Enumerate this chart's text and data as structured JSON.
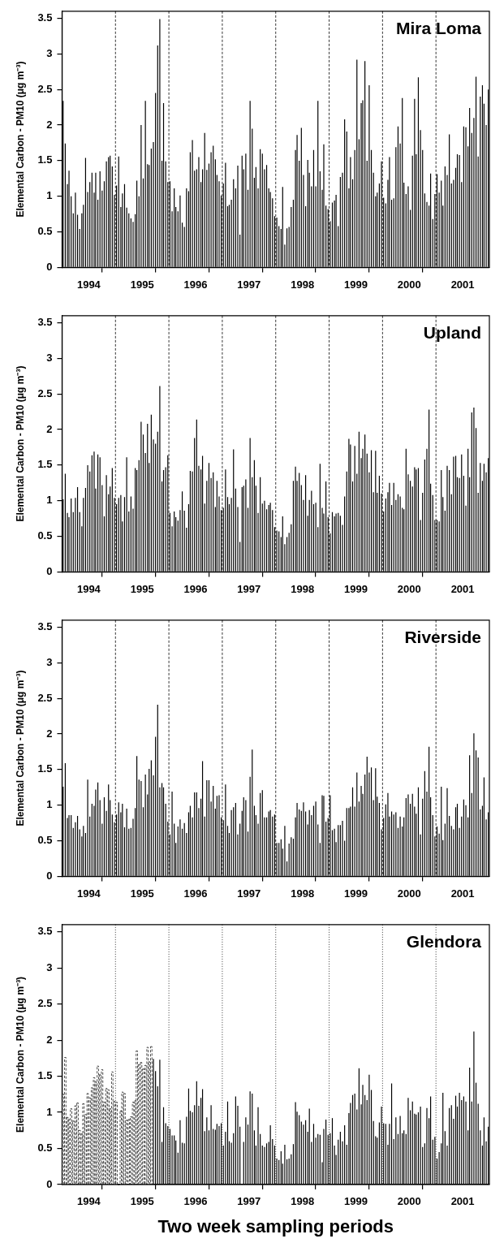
{
  "chart_data": [
    {
      "type": "bar",
      "title": "Mira Loma",
      "ylabel": "Elemental Carbon - PM10 (μg m⁻³)",
      "xlim": [
        1994,
        2002
      ],
      "ylim": [
        0,
        3.6
      ],
      "grid": false,
      "xticks": [
        {
          "value": 1994.5,
          "label": "1994"
        },
        {
          "value": 1995,
          "label": null
        },
        {
          "value": 1995.5,
          "label": "1995"
        },
        {
          "value": 1996,
          "label": null
        },
        {
          "value": 1996.5,
          "label": "1996"
        },
        {
          "value": 1997,
          "label": null
        },
        {
          "value": 1997.5,
          "label": "1997"
        },
        {
          "value": 1998,
          "label": null
        },
        {
          "value": 1998.5,
          "label": "1998"
        },
        {
          "value": 1999,
          "label": null
        },
        {
          "value": 1999.5,
          "label": "1999"
        },
        {
          "value": 2000,
          "label": null
        },
        {
          "value": 2000.5,
          "label": "2000"
        },
        {
          "value": 2001,
          "label": null
        },
        {
          "value": 2001.5,
          "label": "2001"
        }
      ],
      "yticks": [
        0,
        0.5,
        1,
        1.5,
        2,
        2.5,
        3,
        3.5
      ],
      "ref_lines": [
        {
          "axis": "x",
          "value": 1995,
          "line_style": "dashed"
        },
        {
          "axis": "x",
          "value": 1996,
          "line_style": "dashed"
        },
        {
          "axis": "x",
          "value": 1997,
          "line_style": "dashed"
        },
        {
          "axis": "x",
          "value": 1998,
          "line_style": "dashed"
        },
        {
          "axis": "x",
          "value": 1999,
          "line_style": "dashed"
        },
        {
          "axis": "x",
          "value": 2000,
          "line_style": "dashed"
        },
        {
          "axis": "x",
          "value": 2001,
          "line_style": "dashed"
        }
      ],
      "x": [
        1994.02,
        1994.06,
        1994.1,
        1994.13,
        1994.17,
        1994.21,
        1994.25,
        1994.29,
        1994.33,
        1994.37,
        1994.4,
        1994.44,
        1994.48,
        1994.52,
        1994.56,
        1994.6,
        1994.63,
        1994.67,
        1994.71,
        1994.75,
        1994.79,
        1994.83,
        1994.87,
        1994.9,
        1994.94,
        1994.98,
        1995.02,
        1995.06,
        1995.1,
        1995.13,
        1995.17,
        1995.21,
        1995.25,
        1995.29,
        1995.33,
        1995.37,
        1995.4,
        1995.44,
        1995.48,
        1995.52,
        1995.56,
        1995.6,
        1995.63,
        1995.67,
        1995.71,
        1995.75,
        1995.79,
        1995.83,
        1995.87,
        1995.9,
        1995.94,
        1995.98,
        1996.02,
        1996.06,
        1996.1,
        1996.13,
        1996.17,
        1996.21,
        1996.25,
        1996.29,
        1996.33,
        1996.37,
        1996.4,
        1996.44,
        1996.48,
        1996.52,
        1996.56,
        1996.6,
        1996.63,
        1996.67,
        1996.71,
        1996.75,
        1996.79,
        1996.83,
        1996.87,
        1996.9,
        1996.94,
        1996.98,
        1997.02,
        1997.06,
        1997.1,
        1997.13,
        1997.17,
        1997.21,
        1997.25,
        1997.29,
        1997.33,
        1997.37,
        1997.4,
        1997.44,
        1997.48,
        1997.52,
        1997.56,
        1997.6,
        1997.63,
        1997.67,
        1997.71,
        1997.75,
        1997.79,
        1997.83,
        1997.87,
        1997.9,
        1997.94,
        1997.98,
        1998.02,
        1998.06,
        1998.1,
        1998.13,
        1998.17,
        1998.21,
        1998.25,
        1998.29,
        1998.33,
        1998.37,
        1998.4,
        1998.44,
        1998.48,
        1998.52,
        1998.56,
        1998.6,
        1998.63,
        1998.67,
        1998.71,
        1998.75,
        1998.79,
        1998.83,
        1998.87,
        1998.9,
        1998.94,
        1998.98,
        1999.02,
        1999.06,
        1999.1,
        1999.13,
        1999.17,
        1999.21,
        1999.25,
        1999.29,
        1999.33,
        1999.37,
        1999.4,
        1999.44,
        1999.48,
        1999.52,
        1999.56,
        1999.6,
        1999.63,
        1999.67,
        1999.71,
        1999.75,
        1999.79,
        1999.83,
        1999.87,
        1999.9,
        1999.94,
        1999.98,
        2000.02,
        2000.06,
        2000.1,
        2000.13,
        2000.17,
        2000.21,
        2000.25,
        2000.29,
        2000.33,
        2000.37,
        2000.4,
        2000.44,
        2000.48,
        2000.52,
        2000.56,
        2000.6,
        2000.63,
        2000.67,
        2000.71,
        2000.75,
        2000.79,
        2000.83,
        2000.87,
        2000.9,
        2000.94,
        2000.98,
        2001.02,
        2001.06,
        2001.1,
        2001.13,
        2001.17,
        2001.21,
        2001.25,
        2001.29,
        2001.33,
        2001.37,
        2001.4,
        2001.44,
        2001.48,
        2001.52,
        2001.56,
        2001.6,
        2001.63,
        2001.67,
        2001.71,
        2001.75,
        2001.79,
        2001.83,
        2001.87,
        2001.9,
        2001.94,
        2001.98
      ],
      "series": [
        {
          "color": "#000000",
          "values": [
            2.34,
            1.74,
            1.17,
            1.36,
            1.0,
            0.76,
            1.05,
            0.74,
            0.54,
            0.76,
            0.88,
            1.54,
            1.06,
            1.2,
            1.33,
            1.05,
            1.33,
            0.95,
            1.35,
            1.08,
            1.21,
            1.49,
            1.55,
            1.57,
            1.42,
            1.02,
            1.15,
            1.56,
            0.85,
            1.04,
            1.17,
            0.84,
            0.76,
            0.69,
            0.64,
            0.75,
            1.22,
            1.0,
            2.0,
            1.25,
            2.34,
            1.45,
            1.44,
            1.67,
            1.76,
            2.45,
            3.12,
            3.49,
            1.5,
            2.31,
            1.49,
            1.2,
            1.21,
            0.79,
            1.11,
            0.85,
            0.79,
            1.01,
            0.63,
            0.57,
            1.11,
            1.07,
            1.62,
            1.79,
            1.36,
            1.38,
            1.55,
            1.2,
            1.38,
            1.89,
            1.37,
            1.46,
            1.62,
            1.71,
            1.52,
            1.3,
            1.21,
            1.01,
            1.18,
            1.47,
            0.86,
            0.88,
            0.95,
            1.24,
            1.11,
            1.43,
            0.46,
            1.57,
            1.38,
            1.6,
            1.09,
            2.34,
            1.95,
            1.26,
            1.41,
            1.11,
            1.66,
            1.6,
            1.38,
            1.44,
            1.11,
            1.06,
            0.97,
            0.72,
            0.7,
            0.58,
            0.54,
            1.13,
            0.32,
            0.55,
            0.57,
            0.85,
            0.95,
            1.65,
            1.86,
            1.5,
            1.96,
            1.3,
            0.86,
            1.51,
            1.33,
            1.14,
            1.65,
            1.14,
            2.34,
            1.35,
            1.09,
            1.73,
            0.87,
            0.82,
            0.65,
            0.91,
            0.94,
            1.02,
            0.58,
            1.27,
            1.33,
            2.08,
            1.91,
            1.11,
            1.55,
            1.24,
            1.65,
            2.92,
            1.8,
            2.31,
            2.35,
            2.9,
            1.5,
            2.56,
            1.65,
            1.33,
            1.0,
            1.05,
            1.18,
            1.49,
            0.98,
            0.9,
            1.23,
            1.55,
            0.95,
            0.97,
            1.69,
            1.98,
            1.74,
            2.38,
            1.19,
            1.03,
            1.14,
            0.81,
            1.57,
            2.37,
            1.59,
            2.67,
            1.93,
            1.65,
            1.04,
            0.92,
            0.87,
            1.32,
            0.68,
            1.03,
            1.31,
            1.05,
            1.22,
            0.87,
            1.42,
            1.3,
            1.87,
            1.18,
            1.23,
            1.4,
            1.59,
            1.58,
            1.2,
            1.98,
            1.97,
            1.7,
            2.24,
            1.89,
            2.1,
            2.68,
            1.56,
            2.4,
            2.56,
            2.3,
            2.0,
            2.5
          ]
        }
      ]
    },
    {
      "type": "bar",
      "title": "Upland",
      "ylabel": "Elemental Carbon - PM10 (μg m⁻³)",
      "xlim": [
        1994,
        2002
      ],
      "ylim": [
        0,
        3.6
      ],
      "grid": false,
      "xticks": [
        {
          "value": 1994.5,
          "label": "1994"
        },
        {
          "value": 1995,
          "label": null
        },
        {
          "value": 1995.5,
          "label": "1995"
        },
        {
          "value": 1996,
          "label": null
        },
        {
          "value": 1996.5,
          "label": "1996"
        },
        {
          "value": 1997,
          "label": null
        },
        {
          "value": 1997.5,
          "label": "1997"
        },
        {
          "value": 1998,
          "label": null
        },
        {
          "value": 1998.5,
          "label": "1998"
        },
        {
          "value": 1999,
          "label": null
        },
        {
          "value": 1999.5,
          "label": "1999"
        },
        {
          "value": 2000,
          "label": null
        },
        {
          "value": 2000.5,
          "label": "2000"
        },
        {
          "value": 2001,
          "label": null
        },
        {
          "value": 2001.5,
          "label": "2001"
        }
      ],
      "yticks": [
        0,
        0.5,
        1,
        1.5,
        2,
        2.5,
        3,
        3.5
      ],
      "ref_lines": [
        {
          "axis": "x",
          "value": 1995,
          "line_style": "dashed"
        },
        {
          "axis": "x",
          "value": 1996,
          "line_style": "dashed"
        },
        {
          "axis": "x",
          "value": 1997,
          "line_style": "dashed"
        },
        {
          "axis": "x",
          "value": 1998,
          "line_style": "dashed"
        },
        {
          "axis": "x",
          "value": 1999,
          "line_style": "dashed"
        },
        {
          "axis": "x",
          "value": 2000,
          "line_style": "dashed"
        },
        {
          "axis": "x",
          "value": 2001,
          "line_style": "dashed"
        }
      ],
      "x": [
        1994.02,
        1994.06,
        1994.1,
        1994.13,
        1994.17,
        1994.21,
        1994.25,
        1994.29,
        1994.33,
        1994.37,
        1994.4,
        1994.44,
        1994.48,
        1994.52,
        1994.56,
        1994.6,
        1994.63,
        1994.67,
        1994.71,
        1994.75,
        1994.79,
        1994.83,
        1994.87,
        1994.9,
        1994.94,
        1994.98,
        1995.02,
        1995.06,
        1995.1,
        1995.13,
        1995.17,
        1995.21,
        1995.25,
        1995.29,
        1995.33,
        1995.37,
        1995.4,
        1995.44,
        1995.48,
        1995.52,
        1995.56,
        1995.6,
        1995.63,
        1995.67,
        1995.71,
        1995.75,
        1995.79,
        1995.83,
        1995.87,
        1995.9,
        1995.94,
        1995.98,
        1996.02,
        1996.06,
        1996.1,
        1996.13,
        1996.17,
        1996.21,
        1996.25,
        1996.29,
        1996.33,
        1996.37,
        1996.4,
        1996.44,
        1996.48,
        1996.52,
        1996.56,
        1996.6,
        1996.63,
        1996.67,
        1996.71,
        1996.75,
        1996.79,
        1996.83,
        1996.87,
        1996.9,
        1996.94,
        1996.98,
        1997.02,
        1997.06,
        1997.1,
        1997.13,
        1997.17,
        1997.21,
        1997.25,
        1997.29,
        1997.33,
        1997.37,
        1997.4,
        1997.44,
        1997.48,
        1997.52,
        1997.56,
        1997.6,
        1997.63,
        1997.67,
        1997.71,
        1997.75,
        1997.79,
        1997.83,
        1997.87,
        1997.9,
        1997.94,
        1997.98,
        1998.02,
        1998.06,
        1998.1,
        1998.13,
        1998.17,
        1998.21,
        1998.25,
        1998.29,
        1998.33,
        1998.37,
        1998.4,
        1998.44,
        1998.48,
        1998.52,
        1998.56,
        1998.6,
        1998.63,
        1998.67,
        1998.71,
        1998.75,
        1998.79,
        1998.83,
        1998.87,
        1998.9,
        1998.94,
        1998.98,
        1999.02,
        1999.06,
        1999.1,
        1999.13,
        1999.17,
        1999.21,
        1999.25,
        1999.29,
        1999.33,
        1999.37,
        1999.4,
        1999.44,
        1999.48,
        1999.52,
        1999.56,
        1999.6,
        1999.63,
        1999.67,
        1999.71,
        1999.75,
        1999.79,
        1999.83,
        1999.87,
        1999.9,
        1999.94,
        1999.98,
        2000.02,
        2000.06,
        2000.1,
        2000.13,
        2000.17,
        2000.21,
        2000.25,
        2000.29,
        2000.33,
        2000.37,
        2000.4,
        2000.44,
        2000.48,
        2000.52,
        2000.56,
        2000.6,
        2000.63,
        2000.67,
        2000.71,
        2000.75,
        2000.79,
        2000.83,
        2000.87,
        2000.9,
        2000.94,
        2000.98,
        2001.02,
        2001.06,
        2001.1,
        2001.13,
        2001.17,
        2001.21,
        2001.25,
        2001.29,
        2001.33,
        2001.37,
        2001.4,
        2001.44,
        2001.48,
        2001.52,
        2001.56,
        2001.6,
        2001.63,
        2001.67,
        2001.71,
        2001.75,
        2001.79,
        2001.83,
        2001.87,
        2001.9,
        2001.94,
        2001.98
      ],
      "series": [
        {
          "color": "#000000",
          "values": [
            1.02,
            1.38,
            0.83,
            0.77,
            1.03,
            0.84,
            1.04,
            1.19,
            0.84,
            0.64,
            1.04,
            1.18,
            1.5,
            1.41,
            1.64,
            1.69,
            1.17,
            1.65,
            1.61,
            1.22,
            0.78,
            1.36,
            1.09,
            1.2,
            1.46,
            1.04,
            0.95,
            1.04,
            1.08,
            0.71,
            1.05,
            1.61,
            0.85,
            1.06,
            0.89,
            1.46,
            1.43,
            1.57,
            2.11,
            1.93,
            1.67,
            2.08,
            1.53,
            2.21,
            1.86,
            1.8,
            1.97,
            2.61,
            1.27,
            1.43,
            1.47,
            1.64,
            0.83,
            0.64,
            0.85,
            0.77,
            0.72,
            0.87,
            1.13,
            0.86,
            0.62,
            0.95,
            1.42,
            1.41,
            1.88,
            2.14,
            1.49,
            1.44,
            1.63,
            0.96,
            1.28,
            1.53,
            1.32,
            1.4,
            0.91,
            1.28,
            1.06,
            0.87,
            0.9,
            1.44,
            1.05,
            0.95,
            1.04,
            1.72,
            1.17,
            0.91,
            0.42,
            1.19,
            1.21,
            1.3,
            0.9,
            1.88,
            1.33,
            1.57,
            1.21,
            0.83,
            1.33,
            0.96,
            1.0,
            0.88,
            0.94,
            0.97,
            0.87,
            0.63,
            0.58,
            0.57,
            0.49,
            0.78,
            0.39,
            0.49,
            0.55,
            0.67,
            1.28,
            1.48,
            1.28,
            1.39,
            1.22,
            1.01,
            1.36,
            0.79,
            1.01,
            1.14,
            0.95,
            0.97,
            0.63,
            1.52,
            0.9,
            0.82,
            1.27,
            0.77,
            0.54,
            0.84,
            0.78,
            0.82,
            0.83,
            0.79,
            0.66,
            1.06,
            1.41,
            1.87,
            1.79,
            1.27,
            1.77,
            1.38,
            1.97,
            1.6,
            1.73,
            1.93,
            1.66,
            1.4,
            1.71,
            1.12,
            1.7,
            1.11,
            1.35,
            1.1,
            0.85,
            1.03,
            1.12,
            1.25,
            0.94,
            1.25,
            1.01,
            1.09,
            1.06,
            0.9,
            0.88,
            1.73,
            1.37,
            1.28,
            1.2,
            1.47,
            1.44,
            1.46,
            0.73,
            1.11,
            1.58,
            1.73,
            2.28,
            1.24,
            1.08,
            0.73,
            0.73,
            0.71,
            1.43,
            1.05,
            0.86,
            1.49,
            1.43,
            1.09,
            1.62,
            1.63,
            1.33,
            1.32,
            1.65,
            1.35,
            0.93,
            1.73,
            1.33,
            2.24,
            2.31,
            2.02,
            1.11,
            1.53,
            1.28,
            1.52,
            1.4,
            1.6
          ]
        }
      ]
    },
    {
      "type": "bar",
      "title": "Riverside",
      "ylabel": "Elemental Carbon - PM10 (μg m⁻³)",
      "xlim": [
        1994,
        2002
      ],
      "ylim": [
        0,
        3.6
      ],
      "grid": false,
      "xticks": [
        {
          "value": 1994.5,
          "label": "1994"
        },
        {
          "value": 1995,
          "label": null
        },
        {
          "value": 1995.5,
          "label": "1995"
        },
        {
          "value": 1996,
          "label": null
        },
        {
          "value": 1996.5,
          "label": "1996"
        },
        {
          "value": 1997,
          "label": null
        },
        {
          "value": 1997.5,
          "label": "1997"
        },
        {
          "value": 1998,
          "label": null
        },
        {
          "value": 1998.5,
          "label": "1998"
        },
        {
          "value": 1999,
          "label": null
        },
        {
          "value": 1999.5,
          "label": "1999"
        },
        {
          "value": 2000,
          "label": null
        },
        {
          "value": 2000.5,
          "label": "2000"
        },
        {
          "value": 2001,
          "label": null
        },
        {
          "value": 2001.5,
          "label": "2001"
        }
      ],
      "yticks": [
        0,
        0.5,
        1,
        1.5,
        2,
        2.5,
        3,
        3.5
      ],
      "ref_lines": [
        {
          "axis": "x",
          "value": 1995,
          "line_style": "dashed"
        },
        {
          "axis": "x",
          "value": 1996,
          "line_style": "dashed"
        },
        {
          "axis": "x",
          "value": 1997,
          "line_style": "dashed"
        },
        {
          "axis": "x",
          "value": 1998,
          "line_style": "dashed"
        },
        {
          "axis": "x",
          "value": 1999,
          "line_style": "dashed"
        },
        {
          "axis": "x",
          "value": 2000,
          "line_style": "dashed"
        },
        {
          "axis": "x",
          "value": 2001,
          "line_style": "dashed"
        }
      ],
      "x": [
        1994.02,
        1994.06,
        1994.1,
        1994.13,
        1994.17,
        1994.21,
        1994.25,
        1994.29,
        1994.33,
        1994.37,
        1994.4,
        1994.44,
        1994.48,
        1994.52,
        1994.56,
        1994.6,
        1994.63,
        1994.67,
        1994.71,
        1994.75,
        1994.79,
        1994.83,
        1994.87,
        1994.9,
        1994.94,
        1994.98,
        1995.02,
        1995.06,
        1995.1,
        1995.13,
        1995.17,
        1995.21,
        1995.25,
        1995.29,
        1995.33,
        1995.37,
        1995.4,
        1995.44,
        1995.48,
        1995.52,
        1995.56,
        1995.6,
        1995.63,
        1995.67,
        1995.71,
        1995.75,
        1995.79,
        1995.83,
        1995.87,
        1995.9,
        1995.94,
        1995.98,
        1996.02,
        1996.06,
        1996.1,
        1996.13,
        1996.17,
        1996.21,
        1996.25,
        1996.29,
        1996.33,
        1996.37,
        1996.4,
        1996.44,
        1996.48,
        1996.52,
        1996.56,
        1996.6,
        1996.63,
        1996.67,
        1996.71,
        1996.75,
        1996.79,
        1996.83,
        1996.87,
        1996.9,
        1996.94,
        1996.98,
        1997.02,
        1997.06,
        1997.1,
        1997.13,
        1997.17,
        1997.21,
        1997.25,
        1997.29,
        1997.33,
        1997.37,
        1997.4,
        1997.44,
        1997.48,
        1997.52,
        1997.56,
        1997.6,
        1997.63,
        1997.67,
        1997.71,
        1997.75,
        1997.79,
        1997.83,
        1997.87,
        1997.9,
        1997.94,
        1997.98,
        1998.02,
        1998.06,
        1998.1,
        1998.13,
        1998.17,
        1998.21,
        1998.25,
        1998.29,
        1998.33,
        1998.37,
        1998.4,
        1998.44,
        1998.48,
        1998.52,
        1998.56,
        1998.6,
        1998.63,
        1998.67,
        1998.71,
        1998.75,
        1998.79,
        1998.83,
        1998.87,
        1998.9,
        1998.94,
        1998.98,
        1999.02,
        1999.06,
        1999.1,
        1999.13,
        1999.17,
        1999.21,
        1999.25,
        1999.29,
        1999.33,
        1999.37,
        1999.4,
        1999.44,
        1999.48,
        1999.52,
        1999.56,
        1999.6,
        1999.63,
        1999.67,
        1999.71,
        1999.75,
        1999.79,
        1999.83,
        1999.87,
        1999.9,
        1999.94,
        1999.98,
        2000.02,
        2000.06,
        2000.1,
        2000.13,
        2000.17,
        2000.21,
        2000.25,
        2000.29,
        2000.33,
        2000.37,
        2000.4,
        2000.44,
        2000.48,
        2000.52,
        2000.56,
        2000.6,
        2000.63,
        2000.67,
        2000.71,
        2000.75,
        2000.79,
        2000.83,
        2000.87,
        2000.9,
        2000.94,
        2000.98,
        2001.02,
        2001.06,
        2001.1,
        2001.13,
        2001.17,
        2001.21,
        2001.25,
        2001.29,
        2001.33,
        2001.37,
        2001.4,
        2001.44,
        2001.48,
        2001.52,
        2001.56,
        2001.6,
        2001.63,
        2001.67,
        2001.71,
        2001.75,
        2001.79,
        2001.83,
        2001.87,
        2001.9,
        2001.94,
        2001.98
      ],
      "series": [
        {
          "color": "#000000",
          "values": [
            1.26,
            1.59,
            0.82,
            0.86,
            0.86,
            0.68,
            0.76,
            0.85,
            0.66,
            0.56,
            0.71,
            0.61,
            1.36,
            0.84,
            1.02,
            0.99,
            1.22,
            1.32,
            1.07,
            0.74,
            1.11,
            0.92,
            1.29,
            1.07,
            0.87,
            0.76,
            0.87,
            1.04,
            0.9,
            1.02,
            0.69,
            0.95,
            0.67,
            0.68,
            0.81,
            0.96,
            1.69,
            1.36,
            1.34,
            0.97,
            1.43,
            1.15,
            1.51,
            1.63,
            1.42,
            1.96,
            2.41,
            1.25,
            1.31,
            1.25,
            1.02,
            0.77,
            0.59,
            1.19,
            0.74,
            0.47,
            0.7,
            0.8,
            0.67,
            0.75,
            0.61,
            0.9,
            0.99,
            0.83,
            1.18,
            1.18,
            0.96,
            1.09,
            1.62,
            0.84,
            1.35,
            1.35,
            1.05,
            1.27,
            0.95,
            1.13,
            1.14,
            0.83,
            0.79,
            1.29,
            0.71,
            0.61,
            0.93,
            0.97,
            1.03,
            0.59,
            0.74,
            0.92,
            1.11,
            1.07,
            0.63,
            1.4,
            1.78,
            0.99,
            0.86,
            0.74,
            1.17,
            1.21,
            0.83,
            0.83,
            0.91,
            0.93,
            0.84,
            0.87,
            0.47,
            0.47,
            0.52,
            0.39,
            0.71,
            0.21,
            0.46,
            0.55,
            0.53,
            0.83,
            1.03,
            0.94,
            0.92,
            1.04,
            0.91,
            0.73,
            0.93,
            0.86,
            0.99,
            1.05,
            0.73,
            0.47,
            1.14,
            1.13,
            0.77,
            0.82,
            1.14,
            0.65,
            0.67,
            0.48,
            0.72,
            0.72,
            0.78,
            0.5,
            0.96,
            0.96,
            0.98,
            1.25,
            0.98,
            1.46,
            1.05,
            1.27,
            1.16,
            1.43,
            1.68,
            1.46,
            1.53,
            1.07,
            1.52,
            1.12,
            1.03,
            0.66,
            0.82,
            1.01,
            1.17,
            0.84,
            0.91,
            0.87,
            0.9,
            0.68,
            0.84,
            0.7,
            0.83,
            1.1,
            1.15,
            1.02,
            1.16,
            0.98,
            0.88,
            1.25,
            0.59,
            1.09,
            1.48,
            1.19,
            1.82,
            1.11,
            0.86,
            0.56,
            0.7,
            0.6,
            1.26,
            0.51,
            0.74,
            1.24,
            0.85,
            0.71,
            0.66,
            0.97,
            1.02,
            0.68,
            0.84,
            1.08,
            1.0,
            0.83,
            1.7,
            1.17,
            2.01,
            1.77,
            1.67,
            0.94,
            0.99,
            1.39,
            0.8,
            0.9
          ]
        }
      ]
    },
    {
      "type": "bar",
      "title": "Glendora",
      "ylabel": "Elemental Carbon - PM10 (μg m⁻³)",
      "xlabel": "Two week sampling periods",
      "xlim": [
        1994,
        2002
      ],
      "ylim": [
        0,
        3.6
      ],
      "grid": false,
      "xticks": [
        {
          "value": 1994.5,
          "label": "1994"
        },
        {
          "value": 1995,
          "label": null
        },
        {
          "value": 1995.5,
          "label": "1995"
        },
        {
          "value": 1996,
          "label": null
        },
        {
          "value": 1996.5,
          "label": "1996"
        },
        {
          "value": 1997,
          "label": null
        },
        {
          "value": 1997.5,
          "label": "1997"
        },
        {
          "value": 1998,
          "label": null
        },
        {
          "value": 1998.5,
          "label": "1998"
        },
        {
          "value": 1999,
          "label": null
        },
        {
          "value": 1999.5,
          "label": "1999"
        },
        {
          "value": 2000,
          "label": null
        },
        {
          "value": 2000.5,
          "label": "2000"
        },
        {
          "value": 2001,
          "label": null
        },
        {
          "value": 2001.5,
          "label": "2001"
        }
      ],
      "yticks": [
        0,
        0.5,
        1,
        1.5,
        2,
        2.5,
        3,
        3.5
      ],
      "ref_lines": [
        {
          "axis": "x",
          "value": 1995,
          "line_style": "dotted"
        },
        {
          "axis": "x",
          "value": 1996,
          "line_style": "dotted"
        },
        {
          "axis": "x",
          "value": 1997,
          "line_style": "dotted"
        },
        {
          "axis": "x",
          "value": 1998,
          "line_style": "dotted"
        },
        {
          "axis": "x",
          "value": 1999,
          "line_style": "dotted"
        },
        {
          "axis": "x",
          "value": 2000,
          "line_style": "dotted"
        },
        {
          "axis": "x",
          "value": 2001,
          "line_style": "dotted"
        }
      ],
      "series": [
        {
          "color": "#000000",
          "line_style": "dashed",
          "x": [
            1994.02,
            1994.06,
            1994.1,
            1994.13,
            1994.17,
            1994.21,
            1994.25,
            1994.29,
            1994.33,
            1994.37,
            1994.4,
            1994.44,
            1994.48,
            1994.52,
            1994.56,
            1994.6,
            1994.63,
            1994.67,
            1994.71,
            1994.75,
            1994.79,
            1994.83,
            1994.87,
            1994.9,
            1994.94,
            1994.98,
            1995.02,
            1995.06,
            1995.1,
            1995.13,
            1995.17,
            1995.21,
            1995.25,
            1995.29,
            1995.33,
            1995.37,
            1995.4,
            1995.44,
            1995.48,
            1995.52,
            1995.56,
            1995.6,
            1995.63,
            1995.67
          ],
          "values": [
            1.25,
            1.76,
            0.93,
            0.9,
            1.05,
            0.88,
            1.09,
            1.13,
            0.75,
            0.7,
            1.12,
            0.97,
            1.26,
            1.2,
            1.34,
            1.48,
            1.42,
            1.64,
            1.52,
            1.59,
            1.14,
            1.33,
            1.31,
            1.05,
            1.56,
            1.15,
            1.14,
            null,
            1.02,
            1.28,
            1.26,
            0.89,
            0.9,
            0.94,
            1.14,
            1.16,
            1.85,
            1.66,
            1.69,
            1.6,
            1.65,
            1.9,
            1.7,
            1.91
          ]
        },
        {
          "color": "#000000",
          "line_style": "solid",
          "x": [
            1995.71,
            1995.75,
            1995.79,
            1995.83,
            1995.87,
            1995.9,
            1995.94,
            1995.98,
            1996.02,
            1996.06,
            1996.1,
            1996.13,
            1996.17,
            1996.21,
            1996.25,
            1996.29,
            1996.33,
            1996.37,
            1996.4,
            1996.44,
            1996.48,
            1996.52,
            1996.56,
            1996.6,
            1996.63,
            1996.67,
            1996.71,
            1996.75,
            1996.79,
            1996.83,
            1996.87,
            1996.9,
            1996.94,
            1996.98,
            1997.02,
            1997.06,
            1997.1,
            1997.13,
            1997.17,
            1997.21,
            1997.25,
            1997.29,
            1997.33,
            1997.37,
            1997.4,
            1997.44,
            1997.48,
            1997.52,
            1997.56,
            1997.6,
            1997.63,
            1997.67,
            1997.71,
            1997.75,
            1997.79,
            1997.83,
            1997.87,
            1997.9,
            1997.94,
            1997.98,
            1998.02,
            1998.06,
            1998.1,
            1998.13,
            1998.17,
            1998.21,
            1998.25,
            1998.29,
            1998.33,
            1998.37,
            1998.4,
            1998.44,
            1998.48,
            1998.52,
            1998.56,
            1998.6,
            1998.63,
            1998.67,
            1998.71,
            1998.75,
            1998.79,
            1998.83,
            1998.87,
            1998.9,
            1998.94,
            1998.98,
            1999.02,
            1999.06,
            1999.1,
            1999.13,
            1999.17,
            1999.21,
            1999.25,
            1999.29,
            1999.33,
            1999.37,
            1999.4,
            1999.44,
            1999.48,
            1999.52,
            1999.56,
            1999.6,
            1999.63,
            1999.67,
            1999.71,
            1999.75,
            1999.79,
            1999.83,
            1999.87,
            1999.9,
            1999.94,
            1999.98,
            2000.02,
            2000.06,
            2000.1,
            2000.13,
            2000.17,
            2000.21,
            2000.25,
            2000.29,
            2000.33,
            2000.37,
            2000.4,
            2000.44,
            2000.48,
            2000.52,
            2000.56,
            2000.6,
            2000.63,
            2000.67,
            2000.71,
            2000.75,
            2000.79,
            2000.83,
            2000.87,
            2000.9,
            2000.94,
            2000.98,
            2001.02,
            2001.06,
            2001.1,
            2001.13,
            2001.17,
            2001.21,
            2001.25,
            2001.29,
            2001.33,
            2001.37,
            2001.4,
            2001.44,
            2001.48,
            2001.52,
            2001.56,
            2001.6,
            2001.63,
            2001.67,
            2001.71,
            2001.75,
            2001.79,
            2001.83,
            2001.87,
            2001.9,
            2001.94,
            2001.98
          ],
          "values": [
            1.74,
            1.57,
            1.36,
            1.73,
            0.59,
            1.07,
            0.85,
            0.81,
            0.77,
            0.68,
            0.68,
            0.61,
            0.44,
            0.89,
            0.58,
            0.57,
            0.94,
            1.33,
            1.02,
            1.0,
            1.1,
            1.43,
            1.09,
            1.2,
            1.32,
            0.74,
            0.93,
            0.75,
            1.1,
            0.77,
            0.76,
            0.84,
            0.81,
            0.85,
            0.54,
            0.73,
            1.15,
            0.6,
            0.58,
            0.71,
            1.22,
            1.09,
            0.8,
            null,
            0.59,
            0.93,
            0.83,
            1.29,
            1.26,
            0.75,
            0.54,
            1.07,
            0.7,
            0.54,
            0.52,
            0.57,
            0.59,
            0.82,
            0.63,
            0.54,
            0.36,
            0.34,
            0.46,
            0.29,
            0.55,
            0.35,
            0.36,
            0.42,
            0.56,
            1.14,
            1.01,
            0.96,
            0.87,
            0.83,
            0.89,
            0.73,
            1.05,
            0.59,
            0.84,
            0.65,
            0.7,
            0.69,
            0.31,
            0.77,
            0.9,
            0.69,
            0.71,
            0.92,
            0.54,
            0.41,
            0.62,
            0.73,
            0.6,
            0.82,
            0.55,
            0.99,
            1.13,
            1.24,
            1.26,
            1.04,
            1.61,
            1.11,
            1.38,
            1.24,
            1.17,
            1.52,
            1.31,
            0.88,
            0.67,
            0.65,
            0.86,
            1.08,
            0.85,
            0.84,
            0.55,
            0.84,
            1.4,
            0.63,
            0.93,
            0.7,
            0.95,
            0.71,
            0.75,
            0.7,
            1.2,
            1.03,
            1.15,
            0.98,
            0.97,
            1.0,
            1.08,
            0.52,
            0.57,
            1.06,
            0.92,
            1.22,
            0.62,
            0.66,
            0.36,
            0.45,
            0.57,
            1.27,
            0.74,
            0.54,
            1.06,
            1.1,
            0.91,
            1.23,
            1.08,
            1.27,
            1.17,
            1.22,
            1.15,
            0.75,
            1.62,
            1.15,
            2.12,
            1.41,
            1.12,
            0.75,
            0.54,
            0.93,
            0.6,
            0.8
          ]
        }
      ]
    }
  ]
}
